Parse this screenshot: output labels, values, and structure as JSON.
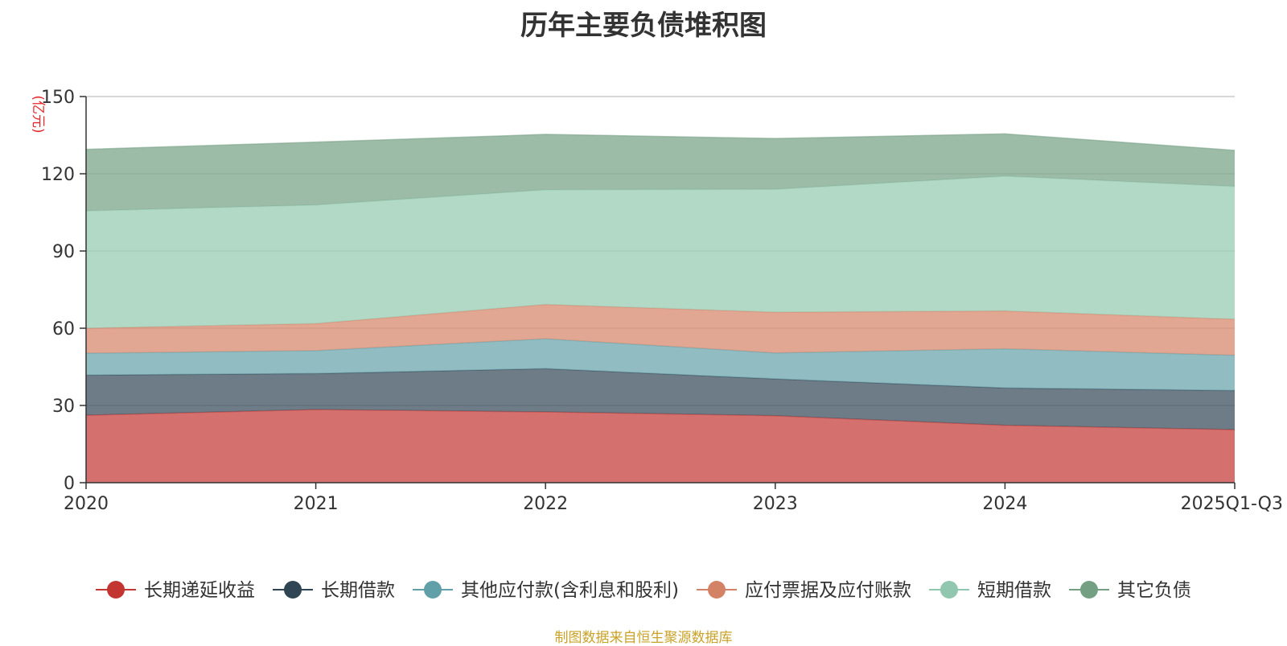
{
  "chart_data": {
    "type": "area",
    "stacked": true,
    "title": "历年主要负债堆积图",
    "unit_label": "(亿元)",
    "source_note": "制图数据来自恒生聚源数据库",
    "categories": [
      "2020",
      "2021",
      "2022",
      "2023",
      "2024",
      "2025Q1-Q3"
    ],
    "ylim": [
      0,
      150
    ],
    "yticks": [
      0,
      30,
      60,
      90,
      120,
      150
    ],
    "grid": true,
    "legend_position": "bottom",
    "series": [
      {
        "name": "长期递延收益",
        "color": "#c23531",
        "values": [
          26.2,
          28.4,
          27.5,
          26.0,
          22.3,
          20.6
        ]
      },
      {
        "name": "长期借款",
        "color": "#2f4554",
        "values": [
          15.6,
          14.0,
          16.8,
          14.3,
          14.5,
          15.2
        ]
      },
      {
        "name": "其他应付款(含利息和股利)",
        "color": "#61a0a8",
        "values": [
          8.5,
          8.9,
          11.6,
          10.1,
          15.2,
          13.7
        ]
      },
      {
        "name": "应付票据及应付账款",
        "color": "#d48265",
        "values": [
          9.7,
          10.5,
          13.3,
          15.8,
          14.7,
          14.0
        ]
      },
      {
        "name": "短期借款",
        "color": "#91c7ae",
        "values": [
          45.6,
          46.1,
          44.6,
          47.8,
          52.4,
          51.6
        ]
      },
      {
        "name": "其它负债",
        "color": "#749f83",
        "values": [
          23.9,
          24.4,
          21.5,
          19.7,
          16.4,
          14.0
        ]
      }
    ]
  }
}
